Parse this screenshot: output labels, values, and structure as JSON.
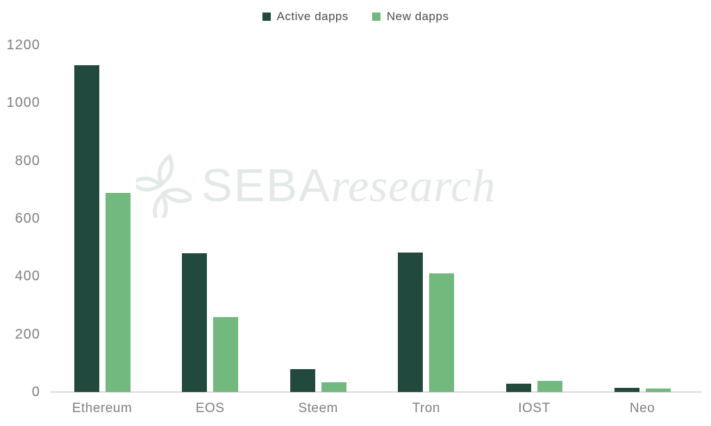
{
  "chart_data": {
    "type": "bar",
    "title": "",
    "xlabel": "",
    "ylabel": "",
    "categories": [
      "Ethereum",
      "EOS",
      "Steem",
      "Tron",
      "IOST",
      "Neo"
    ],
    "series": [
      {
        "name": "Active dapps",
        "color": "#21493e",
        "values": [
          1130,
          480,
          80,
          483,
          30,
          14
        ]
      },
      {
        "name": "New dapps",
        "color": "#72b97e",
        "values": [
          690,
          260,
          33,
          410,
          38,
          11
        ]
      }
    ],
    "ylim": [
      0,
      1200
    ],
    "yticks": [
      0,
      200,
      400,
      600,
      800,
      1000,
      1200
    ],
    "grid": false,
    "legend_position": "top-center",
    "colors": {
      "axis_line": "#d9d9d9",
      "tick_label": "#7f7f7f",
      "category_label": "#7f7f7f",
      "legend_text": "#4d4d4d",
      "watermark": "#e3e9e6"
    },
    "watermark": {
      "brand": "SEBA",
      "suffix": "research"
    }
  }
}
